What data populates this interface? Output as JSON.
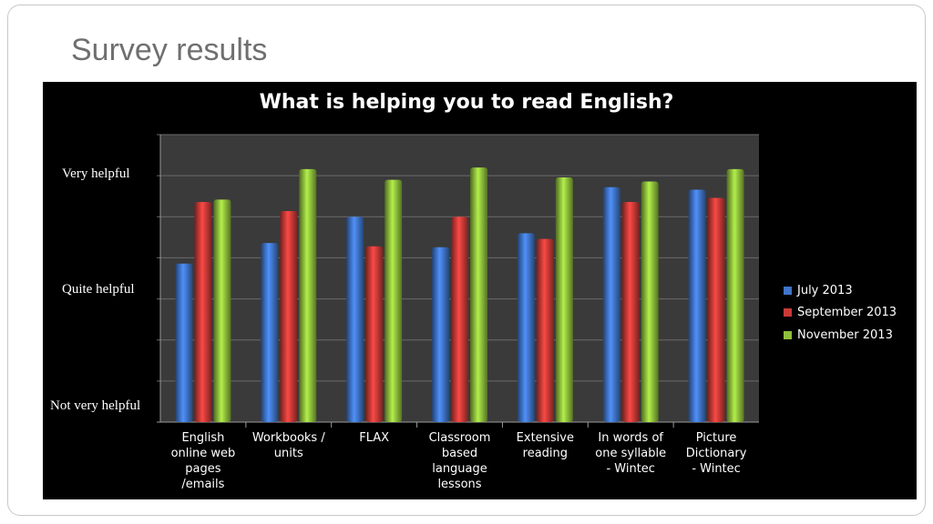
{
  "slide": {
    "title": "Survey results"
  },
  "chart_data": {
    "type": "bar",
    "title": "What is helping you to read English?",
    "categories": [
      "English\nonline web\npages\n/emails",
      "Workbooks /\nunits",
      "FLAX",
      "Classroom\nbased\nlanguage\nlessons",
      "Extensive\nreading",
      "In words of\none syllable\n- Wintec",
      "Picture\nDictionary\n- Wintec"
    ],
    "series": [
      {
        "name": "July 2013",
        "color": "#3f74c8",
        "values": [
          1.93,
          2.18,
          2.5,
          2.13,
          2.3,
          2.86,
          2.83
        ]
      },
      {
        "name": "September 2013",
        "color": "#c93a37",
        "values": [
          2.68,
          2.57,
          2.14,
          2.5,
          2.23,
          2.68,
          2.73
        ]
      },
      {
        "name": "November 2013",
        "color": "#8fbf3c",
        "values": [
          2.71,
          3.08,
          2.95,
          3.1,
          2.98,
          2.93,
          3.08
        ]
      }
    ],
    "y_tick_labels": [
      {
        "value": 0.18,
        "label": "Not very helpful"
      },
      {
        "value": 1.6,
        "label": "Quite helpful"
      },
      {
        "value": 3.0,
        "label": "Very helpful"
      }
    ],
    "ylim": [
      0,
      3.5
    ],
    "grid": true,
    "legend_position": "right"
  }
}
